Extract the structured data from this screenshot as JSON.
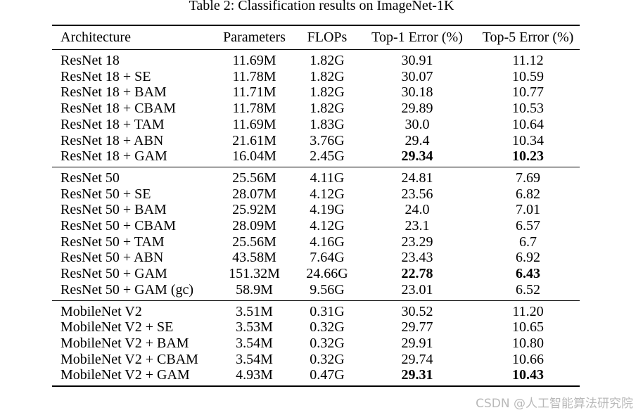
{
  "caption": "Table 2: Classification results on ImageNet-1K",
  "columns": [
    "Architecture",
    "Parameters",
    "FLOPs",
    "Top-1 Error (%)",
    "Top-5 Error (%)"
  ],
  "groups": [
    {
      "rows": [
        {
          "arch": "ResNet 18",
          "params": "11.69M",
          "flops": "1.82G",
          "top1": "30.91",
          "top5": "11.12"
        },
        {
          "arch": "ResNet 18 + SE",
          "params": "11.78M",
          "flops": "1.82G",
          "top1": "30.07",
          "top5": "10.59"
        },
        {
          "arch": "ResNet 18 + BAM",
          "params": "11.71M",
          "flops": "1.82G",
          "top1": "30.18",
          "top5": "10.77"
        },
        {
          "arch": "ResNet 18 + CBAM",
          "params": "11.78M",
          "flops": "1.82G",
          "top1": "29.89",
          "top5": "10.53"
        },
        {
          "arch": "ResNet 18 + TAM",
          "params": "11.69M",
          "flops": "1.83G",
          "top1": "30.0",
          "top5": "10.64"
        },
        {
          "arch": "ResNet 18 + ABN",
          "params": "21.61M",
          "flops": "3.76G",
          "top1": "29.4",
          "top5": "10.34"
        },
        {
          "arch": "ResNet 18 + GAM",
          "params": "16.04M",
          "flops": "2.45G",
          "top1": "29.34",
          "top5": "10.23",
          "bold": true
        }
      ]
    },
    {
      "rows": [
        {
          "arch": "ResNet 50",
          "params": "25.56M",
          "flops": "4.11G",
          "top1": "24.81",
          "top5": "7.69"
        },
        {
          "arch": "ResNet 50 + SE",
          "params": "28.07M",
          "flops": "4.12G",
          "top1": "23.56",
          "top5": "6.82"
        },
        {
          "arch": "ResNet 50 + BAM",
          "params": "25.92M",
          "flops": "4.19G",
          "top1": "24.0",
          "top5": "7.01"
        },
        {
          "arch": "ResNet 50 + CBAM",
          "params": "28.09M",
          "flops": "4.12G",
          "top1": "23.1",
          "top5": "6.57"
        },
        {
          "arch": "ResNet 50 + TAM",
          "params": "25.56M",
          "flops": "4.16G",
          "top1": "23.29",
          "top5": "6.7"
        },
        {
          "arch": "ResNet 50 + ABN",
          "params": "43.58M",
          "flops": "7.64G",
          "top1": "23.43",
          "top5": "6.92"
        },
        {
          "arch": "ResNet 50 + GAM",
          "params": "151.32M",
          "flops": "24.66G",
          "top1": "22.78",
          "top5": "6.43",
          "bold": true
        },
        {
          "arch": "ResNet 50 + GAM (gc)",
          "params": "58.9M",
          "flops": "9.56G",
          "top1": "23.01",
          "top5": "6.52"
        }
      ]
    },
    {
      "rows": [
        {
          "arch": "MobileNet V2",
          "params": "3.51M",
          "flops": "0.31G",
          "top1": "30.52",
          "top5": "11.20"
        },
        {
          "arch": "MobileNet V2 + SE",
          "params": "3.53M",
          "flops": "0.32G",
          "top1": "29.77",
          "top5": "10.65"
        },
        {
          "arch": "MobileNet V2 + BAM",
          "params": "3.54M",
          "flops": "0.32G",
          "top1": "29.91",
          "top5": "10.80"
        },
        {
          "arch": "MobileNet V2 + CBAM",
          "params": "3.54M",
          "flops": "0.32G",
          "top1": "29.74",
          "top5": "10.66"
        },
        {
          "arch": "MobileNet V2 + GAM",
          "params": "4.93M",
          "flops": "0.47G",
          "top1": "29.31",
          "top5": "10.43",
          "bold": true
        }
      ]
    }
  ],
  "watermark": "CSDN @人工智能算法研究院"
}
